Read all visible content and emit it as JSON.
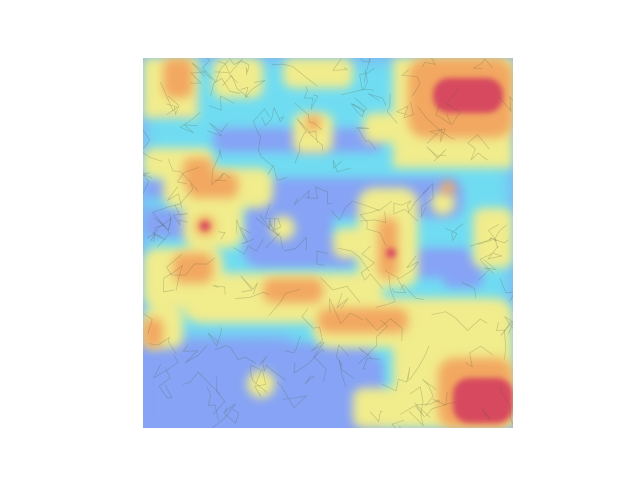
{
  "figure": {
    "kind": "heatmap-overlay-on-micrograph",
    "colormap": "jet",
    "colors": {
      "low": "#7fa0f6",
      "low_mid": "#6fd9f2",
      "mid": "#f1ec8c",
      "high": "#f2a860",
      "peak": "#d7495e"
    },
    "axes_visible": false,
    "has_title": false,
    "has_colorbar": false
  }
}
